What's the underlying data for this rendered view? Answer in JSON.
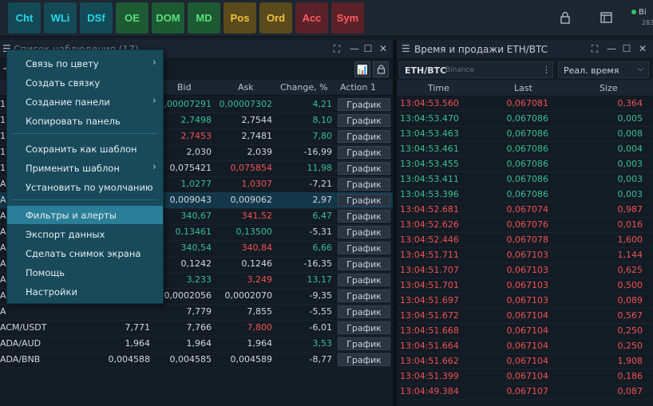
{
  "toolbar": {
    "buttons": [
      {
        "label": "Cht",
        "bg": "#134a55",
        "fg": "#29d6e8"
      },
      {
        "label": "WLi",
        "bg": "#134a55",
        "fg": "#29d6e8"
      },
      {
        "label": "DSf",
        "bg": "#134a55",
        "fg": "#29d6e8"
      },
      {
        "label": "OE",
        "bg": "#1d5a33",
        "fg": "#57e07a"
      },
      {
        "label": "DOM",
        "bg": "#1d5a33",
        "fg": "#57e07a"
      },
      {
        "label": "MD",
        "bg": "#1d5a33",
        "fg": "#57e07a"
      },
      {
        "label": "Pos",
        "bg": "#5a4a1c",
        "fg": "#f2c23a"
      },
      {
        "label": "Ord",
        "bg": "#5a4a1c",
        "fg": "#f2c23a"
      },
      {
        "label": "Acc",
        "bg": "#5a2228",
        "fg": "#ff5a63"
      },
      {
        "label": "Sym",
        "bg": "#5a2228",
        "fg": "#ff5a63"
      }
    ],
    "connection_label": "Bi",
    "connection_sub": "283"
  },
  "watchlist": {
    "title": "Список наблюдения (17)",
    "columns": {
      "bid": "Bid",
      "ask": "Ask",
      "change": "Change, %",
      "action": "Action 1"
    },
    "action_label": "График",
    "rows": [
      {
        "sym": "1",
        "last": "",
        "bid": "0,00007291",
        "ask": "0,00007302",
        "chg": "4,21",
        "bd": "up",
        "ak": "up",
        "cd": "up"
      },
      {
        "sym": "1",
        "last": "",
        "bid": "2,7498",
        "ask": "2,7544",
        "chg": "8,10",
        "bd": "up",
        "ak": "nu",
        "cd": "up"
      },
      {
        "sym": "1",
        "last": "",
        "bid": "2,7453",
        "ask": "2,7481",
        "chg": "7,80",
        "bd": "dn",
        "ak": "nu",
        "cd": "up"
      },
      {
        "sym": "1",
        "last": "",
        "bid": "2,030",
        "ask": "2,039",
        "chg": "-16,99",
        "bd": "nu",
        "ak": "nu",
        "cd": "nu"
      },
      {
        "sym": "1",
        "last": "",
        "bid": "0,075421",
        "ask": "0,075854",
        "chg": "11,98",
        "bd": "nu",
        "ak": "dn",
        "cd": "up"
      },
      {
        "sym": "A",
        "last": "",
        "bid": "1,0277",
        "ask": "1,0307",
        "chg": "-7,21",
        "bd": "up",
        "ak": "dn",
        "cd": "nu"
      },
      {
        "sym": "A",
        "last": "",
        "bid": "0,009043",
        "ask": "0,009062",
        "chg": "2,97",
        "bd": "nu",
        "ak": "nu",
        "cd": "nu"
      },
      {
        "sym": "A",
        "last": "",
        "bid": "340,67",
        "ask": "341,52",
        "chg": "6,47",
        "bd": "up",
        "ak": "dn",
        "cd": "up"
      },
      {
        "sym": "A",
        "last": "",
        "bid": "0,13461",
        "ask": "0,13500",
        "chg": "-5,31",
        "bd": "up",
        "ak": "up",
        "cd": "nu"
      },
      {
        "sym": "A",
        "last": "",
        "bid": "340,54",
        "ask": "340,84",
        "chg": "6,66",
        "bd": "up",
        "ak": "dn",
        "cd": "up"
      },
      {
        "sym": "A",
        "last": "",
        "bid": "0,1242",
        "ask": "0,1246",
        "chg": "-16,35",
        "bd": "nu",
        "ak": "nu",
        "cd": "nu"
      },
      {
        "sym": "A",
        "last": "",
        "bid": "3,233",
        "ask": "3,249",
        "chg": "13,17",
        "bd": "up",
        "ak": "dn",
        "cd": "up"
      },
      {
        "sym": "A",
        "last": "",
        "bid": "0,0002056",
        "ask": "0,0002070",
        "chg": "-9,35",
        "bd": "nu",
        "ak": "nu",
        "cd": "nu"
      },
      {
        "sym": "A",
        "last": "",
        "bid": "7,779",
        "ask": "7,855",
        "chg": "-5,55",
        "bd": "nu",
        "ak": "nu",
        "cd": "nu"
      },
      {
        "sym": "ACM/USDT",
        "last": "7,771",
        "bid": "7,766",
        "ask": "7,800",
        "chg": "-6,01",
        "bd": "nu",
        "ak": "dn",
        "cd": "nu"
      },
      {
        "sym": "ADA/AUD",
        "last": "1,964",
        "bid": "1,964",
        "ask": "1,964",
        "chg": "3,53",
        "bd": "nu",
        "ak": "nu",
        "cd": "up",
        "symc": "up"
      },
      {
        "sym": "ADA/BNB",
        "last": "0,004588",
        "bid": "0,004585",
        "ask": "0,004589",
        "chg": "-8,77",
        "bd": "nu",
        "ak": "nu",
        "cd": "nu"
      }
    ]
  },
  "menu": {
    "items": [
      {
        "label": "Связь по цвету",
        "sub": true
      },
      {
        "label": "Создать связку",
        "sub": false
      },
      {
        "label": "Создание панели",
        "sub": true
      },
      {
        "label": "Копировать панель",
        "sub": false
      },
      {
        "sep": true
      },
      {
        "label": "Сохранить как шаблон",
        "sub": false
      },
      {
        "label": "Применить шаблон",
        "sub": true
      },
      {
        "label": "Установить по умолчанию",
        "sub": false
      },
      {
        "sep": true
      },
      {
        "label": "Фильтры и алерты",
        "sub": false,
        "active": true
      },
      {
        "label": "Экспорт данных",
        "sub": false
      },
      {
        "label": "Сделать снимок экрана",
        "sub": false
      },
      {
        "label": "Помощь",
        "sub": false
      },
      {
        "label": "Настройки",
        "sub": false
      }
    ]
  },
  "ts": {
    "title": "Время и продажи ETH/BTC",
    "symbol": "ETH/BTC",
    "exchange": "Binance",
    "mode": "Реал. время",
    "columns": {
      "time": "Time",
      "last": "Last",
      "size": "Size"
    },
    "rows": [
      {
        "t": "13:04:53.560",
        "p": "0,067081",
        "s": "0,364",
        "d": "dn"
      },
      {
        "t": "13:04:53.470",
        "p": "0,067086",
        "s": "0,005",
        "d": "up"
      },
      {
        "t": "13:04:53.463",
        "p": "0,067086",
        "s": "0,008",
        "d": "up"
      },
      {
        "t": "13:04:53.461",
        "p": "0,067086",
        "s": "0,004",
        "d": "up"
      },
      {
        "t": "13:04:53.455",
        "p": "0,067086",
        "s": "0,003",
        "d": "up"
      },
      {
        "t": "13:04:53.411",
        "p": "0,067086",
        "s": "0,003",
        "d": "up"
      },
      {
        "t": "13:04:53.396",
        "p": "0,067086",
        "s": "0,003",
        "d": "up"
      },
      {
        "t": "13:04:52.681",
        "p": "0,067074",
        "s": "0,987",
        "d": "dn"
      },
      {
        "t": "13:04:52.626",
        "p": "0,067076",
        "s": "0,016",
        "d": "dn"
      },
      {
        "t": "13:04:52.446",
        "p": "0,067078",
        "s": "1,600",
        "d": "dn"
      },
      {
        "t": "13:04:51.711",
        "p": "0,067103",
        "s": "1,144",
        "d": "dn"
      },
      {
        "t": "13:04:51.707",
        "p": "0,067103",
        "s": "0,625",
        "d": "dn"
      },
      {
        "t": "13:04:51.701",
        "p": "0,067103",
        "s": "0,500",
        "d": "dn"
      },
      {
        "t": "13:04:51.697",
        "p": "0,067103",
        "s": "0,089",
        "d": "dn"
      },
      {
        "t": "13:04:51.672",
        "p": "0,067104",
        "s": "0,567",
        "d": "dn"
      },
      {
        "t": "13:04:51.668",
        "p": "0,067104",
        "s": "0,250",
        "d": "dn"
      },
      {
        "t": "13:04:51.664",
        "p": "0,067104",
        "s": "0,250",
        "d": "dn"
      },
      {
        "t": "13:04:51.662",
        "p": "0,067104",
        "s": "1,908",
        "d": "dn"
      },
      {
        "t": "13:04:51.399",
        "p": "0,067104",
        "s": "0,186",
        "d": "dn"
      },
      {
        "t": "13:04:49.384",
        "p": "0,067107",
        "s": "0,087",
        "d": "dn"
      }
    ]
  }
}
